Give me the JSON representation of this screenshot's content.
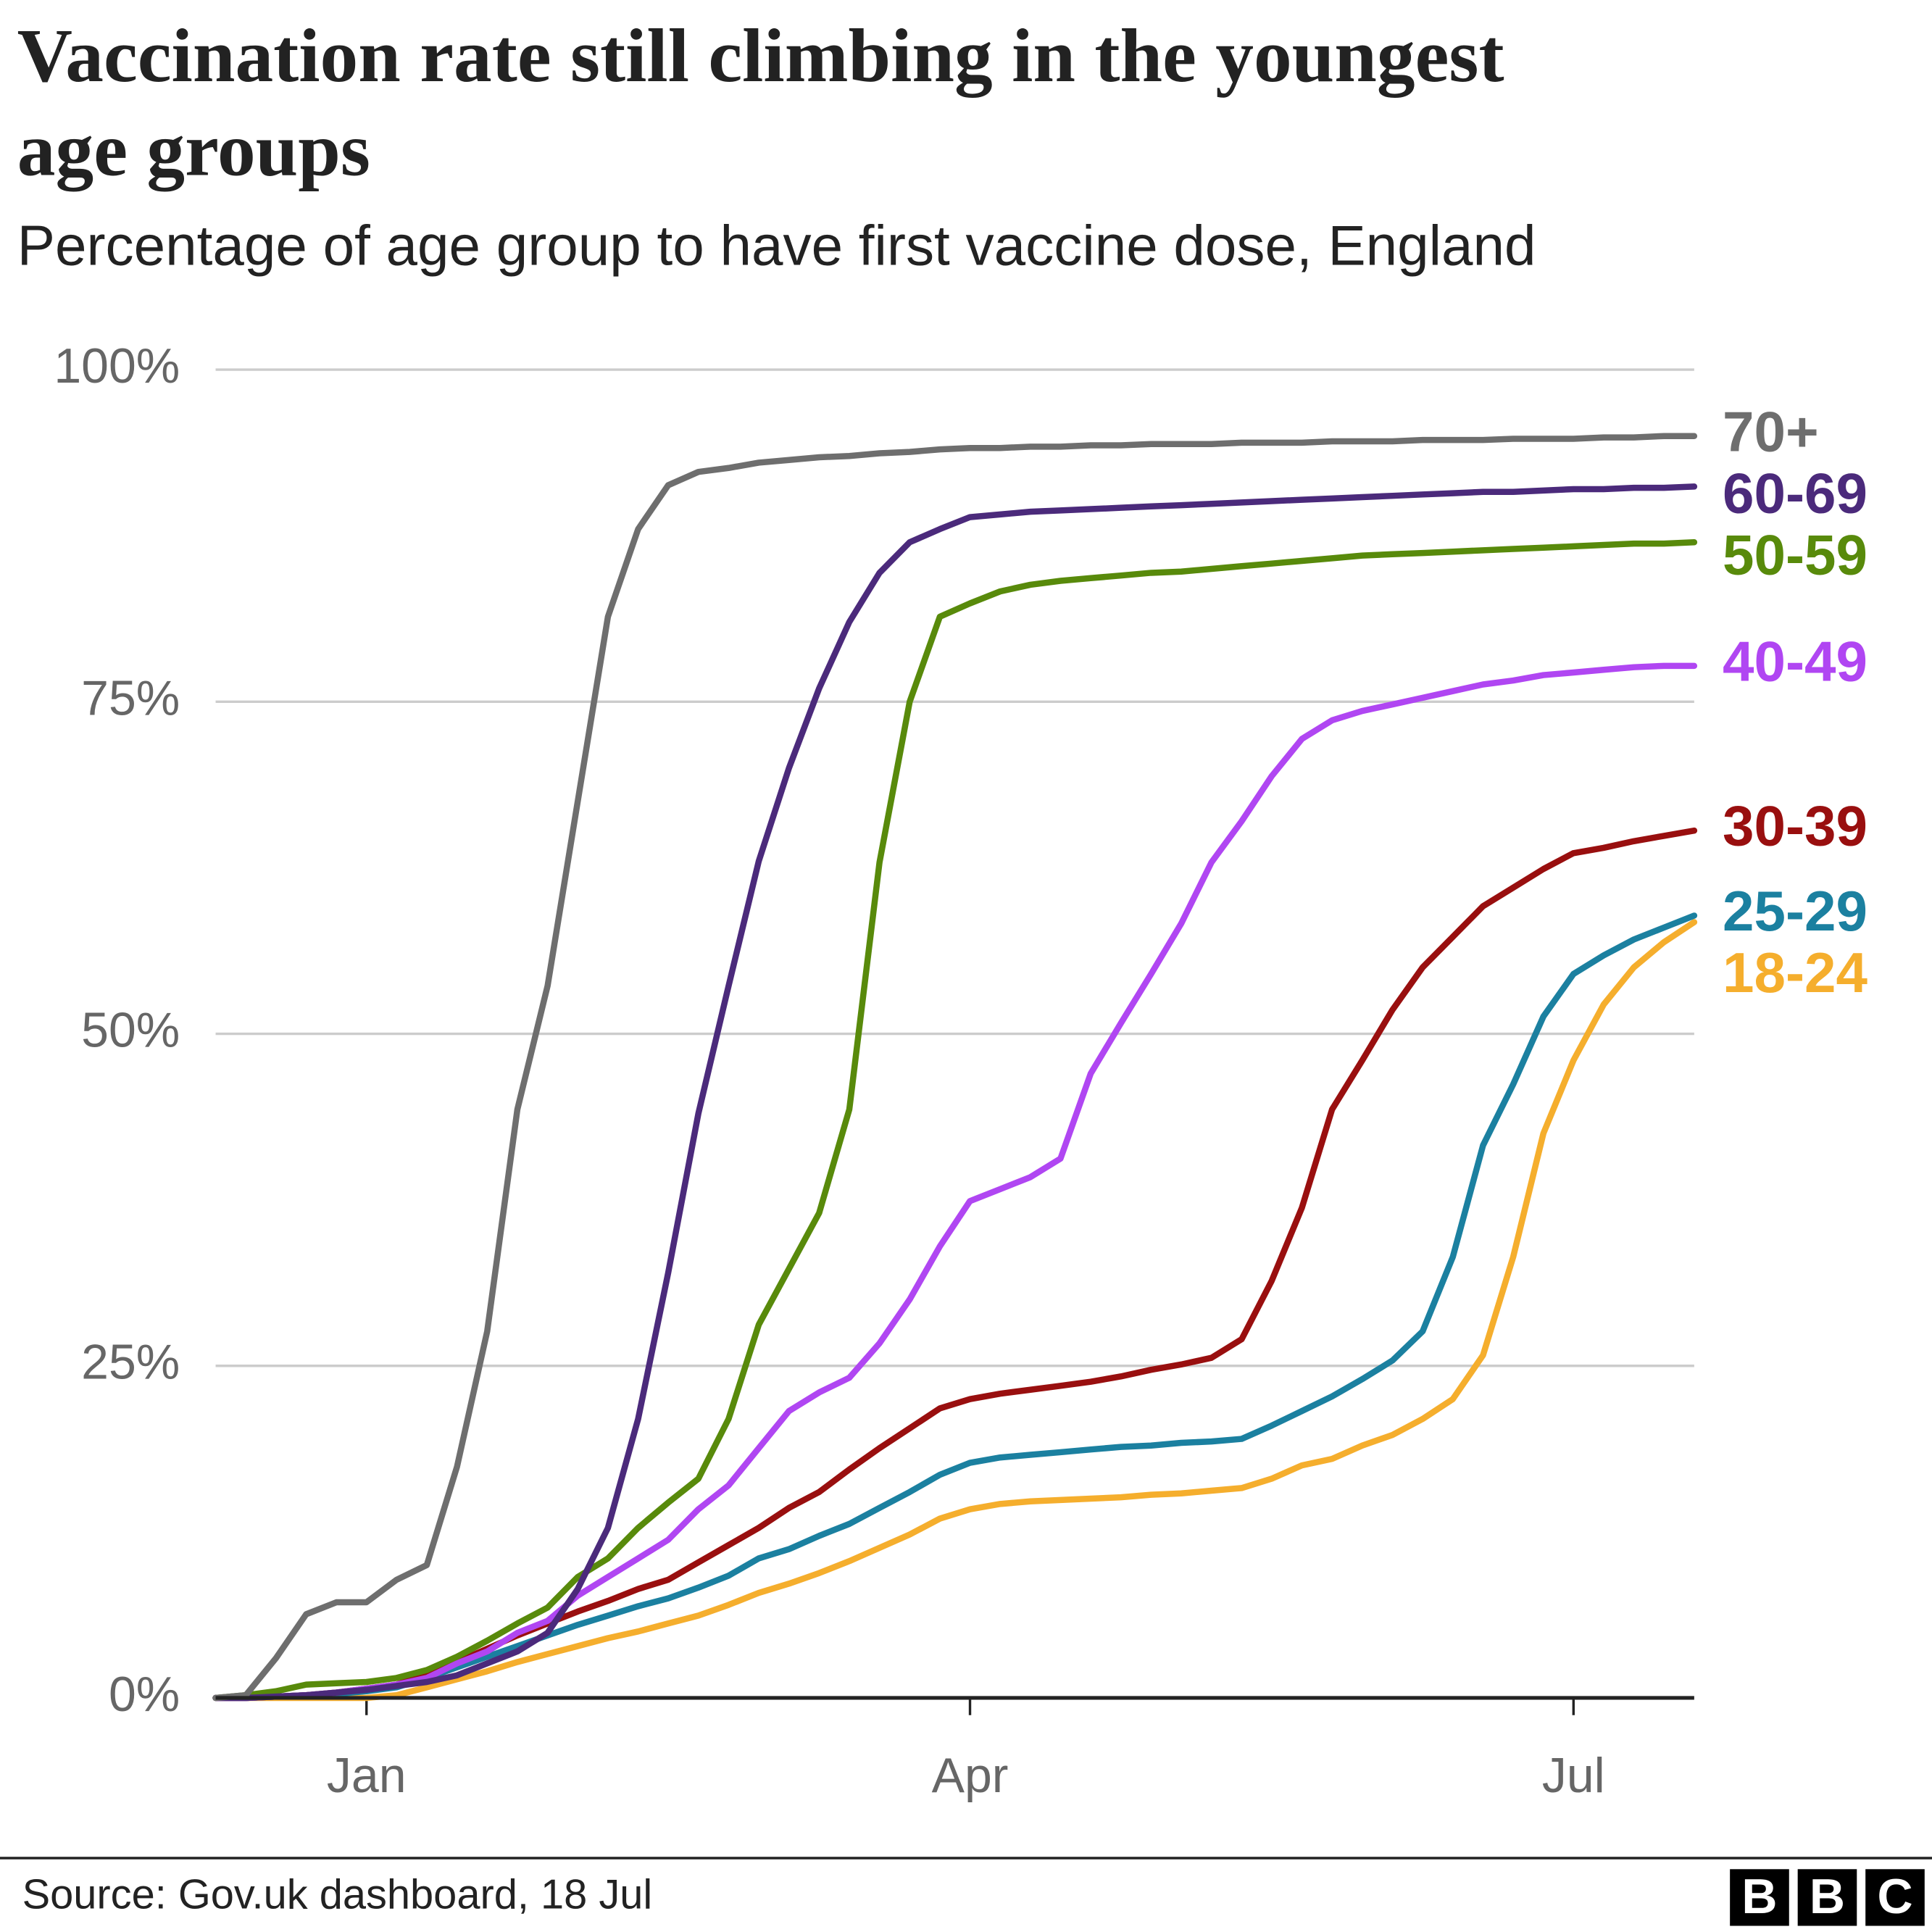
{
  "chart_data": {
    "type": "line",
    "title": "Vaccination rate still climbing in the youngest age groups",
    "subtitle": "Percentage of age group to have first vaccine dose, England",
    "source": "Source: Gov.uk dashboard, 18 Jul",
    "logo": [
      "B",
      "B",
      "C"
    ],
    "categories": [
      null,
      null,
      null,
      null,
      null,
      "Jan",
      null,
      null,
      null,
      null,
      null,
      null,
      null,
      null,
      null,
      null,
      null,
      null,
      null,
      null,
      null,
      null,
      null,
      null,
      null,
      "Apr",
      null,
      null,
      null,
      null,
      null,
      null,
      null,
      null,
      null,
      null,
      null,
      null,
      null,
      null,
      null,
      null,
      null,
      null,
      null,
      "Jul",
      null,
      null,
      null,
      null
    ],
    "ylim": [
      0,
      100
    ],
    "yticks": [
      {
        "value": 0,
        "label": "0%"
      },
      {
        "value": 25,
        "label": "25%"
      },
      {
        "value": 50,
        "label": "50%"
      },
      {
        "value": 75,
        "label": "75%"
      },
      {
        "value": 100,
        "label": "100%"
      }
    ],
    "grid": true,
    "series": [
      {
        "name": "70+",
        "color": "#6e6e6e",
        "values": [
          0,
          0.2,
          3,
          6.3,
          7.2,
          7.2,
          8.9,
          10,
          17.4,
          27.6,
          44.3,
          53.6,
          67.5,
          81.4,
          88,
          91.3,
          92.3,
          92.6,
          93,
          93.2,
          93.4,
          93.5,
          93.7,
          93.8,
          94,
          94.1,
          94.1,
          94.2,
          94.2,
          94.3,
          94.3,
          94.4,
          94.4,
          94.4,
          94.5,
          94.5,
          94.5,
          94.6,
          94.6,
          94.6,
          94.7,
          94.7,
          94.7,
          94.8,
          94.8,
          94.8,
          94.9,
          94.9,
          95,
          95
        ]
      },
      {
        "name": "60-69",
        "color": "#4b2a7b",
        "values": [
          0,
          0,
          0.1,
          0.2,
          0.4,
          0.6,
          0.9,
          1.2,
          1.7,
          2.6,
          3.5,
          4.9,
          8.2,
          12.8,
          21,
          32,
          44,
          53.6,
          63,
          70,
          76,
          81,
          84.7,
          87,
          88,
          88.9,
          89.1,
          89.3,
          89.4,
          89.5,
          89.6,
          89.7,
          89.8,
          89.9,
          90,
          90.1,
          90.2,
          90.3,
          90.4,
          90.5,
          90.6,
          90.7,
          90.8,
          90.8,
          90.9,
          91,
          91,
          91.1,
          91.1,
          91.2
        ]
      },
      {
        "name": "50-59",
        "color": "#588a0b",
        "values": [
          0,
          0.2,
          0.5,
          1,
          1.1,
          1.2,
          1.5,
          2.1,
          3.1,
          4.3,
          5.6,
          6.8,
          9.1,
          10.5,
          12.8,
          14.7,
          16.5,
          21,
          28.1,
          32.3,
          36.5,
          44.3,
          62.9,
          75,
          81.4,
          82.4,
          83.3,
          83.8,
          84.1,
          84.3,
          84.5,
          84.7,
          84.8,
          85,
          85.2,
          85.4,
          85.6,
          85.8,
          86,
          86.1,
          86.2,
          86.3,
          86.4,
          86.5,
          86.6,
          86.7,
          86.8,
          86.9,
          86.9,
          87
        ]
      },
      {
        "name": "40-49",
        "color": "#b046f2",
        "values": [
          0,
          0,
          0.1,
          0.2,
          0.4,
          0.7,
          1,
          1.5,
          2.6,
          3.5,
          4.9,
          5.8,
          7.7,
          9.1,
          10.5,
          11.9,
          14.2,
          16,
          18.8,
          21.6,
          23,
          24.1,
          26.7,
          30,
          34,
          37.4,
          38.3,
          39.2,
          40.6,
          47,
          50.8,
          54.5,
          58.3,
          62.9,
          66,
          69.4,
          72.2,
          73.6,
          74.3,
          74.8,
          75.3,
          75.8,
          76.3,
          76.6,
          77,
          77.2,
          77.4,
          77.6,
          77.7,
          77.7
        ]
      },
      {
        "name": "30-39",
        "color": "#990f0f",
        "values": [
          0,
          0,
          0.1,
          0.2,
          0.4,
          0.7,
          1,
          1.8,
          2.7,
          3.7,
          4.7,
          5.6,
          6.5,
          7.3,
          8.2,
          8.9,
          10.2,
          11.5,
          12.8,
          14.3,
          15.5,
          17.2,
          18.8,
          20.3,
          21.8,
          22.5,
          22.9,
          23.2,
          23.5,
          23.8,
          24.2,
          24.7,
          25.1,
          25.6,
          27,
          31.4,
          36.9,
          44.3,
          48,
          51.8,
          55,
          57.3,
          59.6,
          61,
          62.4,
          63.6,
          64,
          64.5,
          64.9,
          65.3
        ]
      },
      {
        "name": "25-29",
        "color": "#1b80a0",
        "values": [
          0,
          0,
          0.1,
          0.2,
          0.3,
          0.5,
          0.8,
          1.5,
          2.3,
          3.1,
          3.9,
          4.7,
          5.5,
          6.2,
          6.9,
          7.5,
          8.3,
          9.2,
          10.5,
          11.2,
          12.2,
          13.1,
          14.3,
          15.5,
          16.8,
          17.7,
          18.1,
          18.3,
          18.5,
          18.7,
          18.9,
          19,
          19.2,
          19.3,
          19.5,
          20.5,
          21.6,
          22.7,
          24,
          25.4,
          27.6,
          33.2,
          41.6,
          46.2,
          51.3,
          54.5,
          55.9,
          57.1,
          58,
          58.9
        ]
      },
      {
        "name": "18-24",
        "color": "#f5ae2d",
        "values": [
          0,
          0,
          0,
          0,
          0,
          0,
          0.2,
          0.8,
          1.4,
          2,
          2.7,
          3.3,
          3.9,
          4.5,
          5,
          5.6,
          6.2,
          7,
          7.9,
          8.6,
          9.4,
          10.3,
          11.3,
          12.3,
          13.5,
          14.2,
          14.6,
          14.8,
          14.9,
          15,
          15.1,
          15.3,
          15.4,
          15.6,
          15.8,
          16.5,
          17.5,
          18,
          19,
          19.8,
          21,
          22.5,
          25.8,
          33.2,
          42.5,
          48,
          52.2,
          55,
          56.9,
          58.4
        ]
      }
    ]
  }
}
